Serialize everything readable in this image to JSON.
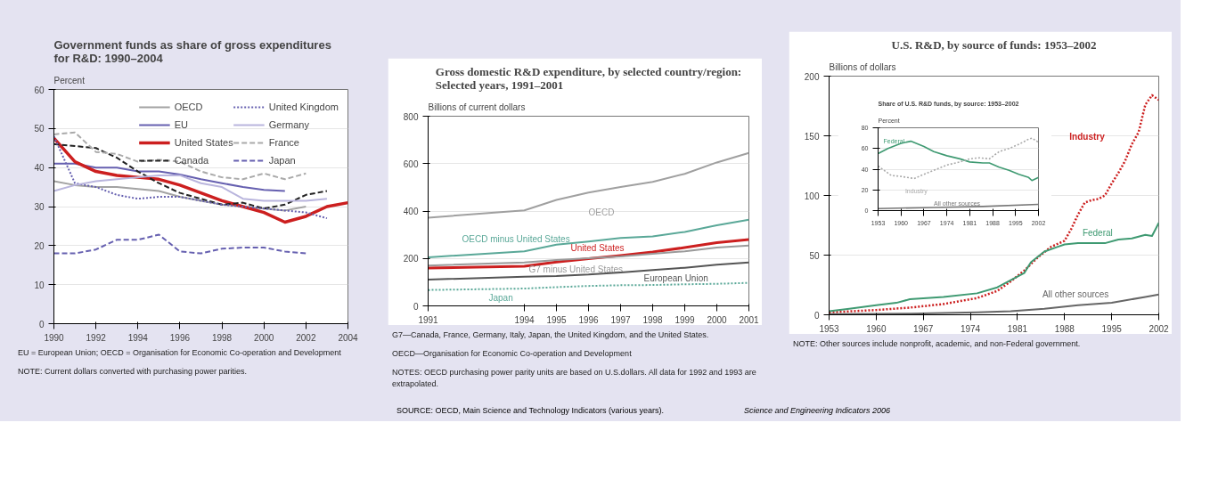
{
  "chart_data": [
    {
      "type": "line",
      "title": "Government funds as share of gross expenditures for R&D: 1990–2004",
      "ylabel": "Percent",
      "x": [
        1990,
        1991,
        1992,
        1993,
        1994,
        1995,
        1996,
        1997,
        1998,
        1999,
        2000,
        2001,
        2002,
        2003,
        2004
      ],
      "xlim": [
        1990,
        2004
      ],
      "xticks": [
        1990,
        1992,
        1994,
        1996,
        1998,
        2000,
        2002,
        2004
      ],
      "ylim": [
        0,
        60
      ],
      "yticks": [
        0,
        10,
        20,
        30,
        40,
        50,
        60
      ],
      "grid": "y",
      "legend": "top right",
      "series": [
        {
          "name": "OECD",
          "color": "#a3a3a3",
          "line_style": "solid",
          "values": [
            36.5,
            35.5,
            35,
            35,
            34.5,
            34,
            32.5,
            31.5,
            30.5,
            30,
            29.5,
            29,
            30,
            null,
            null
          ]
        },
        {
          "name": "EU",
          "color": "#6660b0",
          "line_style": "solid",
          "values": [
            41,
            41,
            40,
            40,
            39,
            39,
            38.2,
            37,
            36,
            35,
            34.3,
            34,
            null,
            null,
            null
          ]
        },
        {
          "name": "United States",
          "color": "#cc1f1f",
          "line_style": "solid",
          "values": [
            47.5,
            41.5,
            39,
            38,
            37.5,
            37,
            35.5,
            33.5,
            31.5,
            30,
            28.5,
            26,
            27.5,
            30,
            31
          ]
        },
        {
          "name": "Canada",
          "color": "#222222",
          "line_style": "dashed",
          "values": [
            46,
            45.5,
            45,
            42.5,
            39,
            36,
            33.5,
            32,
            30.5,
            31,
            29.5,
            30.5,
            33,
            34,
            null
          ]
        },
        {
          "name": "United Kingdom",
          "color": "#6660b0",
          "line_style": "dotted",
          "values": [
            48,
            36,
            35,
            33,
            32,
            32.5,
            32.5,
            31.5,
            30.5,
            30,
            29.5,
            29,
            28.5,
            27,
            null
          ]
        },
        {
          "name": "Germany",
          "color": "#b9b5dd",
          "line_style": "solid",
          "values": [
            34,
            35.5,
            36.5,
            37,
            37.5,
            38,
            38,
            36,
            35,
            32,
            31.5,
            31.5,
            31.5,
            32,
            null
          ]
        },
        {
          "name": "France",
          "color": "#aaaaaa",
          "line_style": "dashed",
          "values": [
            48.5,
            49,
            44,
            43.5,
            41.5,
            42,
            41.5,
            39,
            37.5,
            37,
            38.5,
            37,
            38.5,
            null,
            null
          ]
        },
        {
          "name": "Japan",
          "color": "#6660b0",
          "line_style": "dashed",
          "values": [
            18,
            18,
            19,
            21.5,
            21.5,
            22.8,
            18.5,
            18,
            19.2,
            19.5,
            19.5,
            18.5,
            18,
            null,
            null
          ]
        }
      ],
      "annotations": [
        "EU = European Union; OECD = Organisation for Economic Co-operation and Development",
        "NOTE: Current dollars converted with purchasing power parities."
      ]
    },
    {
      "type": "line",
      "title": "Gross domestic R&D expenditure, by selected country/region: Selected years, 1991–2001",
      "ylabel": "Billions of current dollars",
      "x": [
        1991,
        1994,
        1995,
        1996,
        1997,
        1998,
        1999,
        2000,
        2001
      ],
      "xlim": [
        1991,
        2001
      ],
      "xticks": [
        1991,
        1994,
        1995,
        1996,
        1997,
        1998,
        1999,
        2000,
        2001
      ],
      "ylim": [
        0,
        800
      ],
      "yticks": [
        0,
        200,
        400,
        600,
        800
      ],
      "grid": "y",
      "series": [
        {
          "name": "OECD",
          "color": "#a0a0a0",
          "line_style": "solid",
          "values": [
            372,
            403,
            447,
            478,
            501,
            523,
            557,
            605,
            645
          ]
        },
        {
          "name": "OECD minus United States",
          "color": "#5aa898",
          "line_style": "solid",
          "values": [
            205,
            230,
            258,
            271,
            286,
            293,
            312,
            340,
            363
          ]
        },
        {
          "name": "United States",
          "color": "#cc1f1f",
          "line_style": "solid",
          "values": [
            160,
            167,
            185,
            199,
            212,
            227,
            246,
            267,
            280
          ]
        },
        {
          "name": "G7 minus United States",
          "color": "#9a9a9a",
          "line_style": "solid",
          "values": [
            170,
            183,
            193,
            201,
            208,
            220,
            230,
            246,
            254
          ]
        },
        {
          "name": "European Union",
          "color": "#555555",
          "line_style": "solid",
          "values": [
            111,
            123,
            126,
            132,
            141,
            151,
            161,
            174,
            183
          ]
        },
        {
          "name": "Japan",
          "color": "#5aa898",
          "line_style": "dotted",
          "values": [
            67,
            73,
            79,
            84,
            87,
            88,
            91,
            93,
            97
          ]
        }
      ],
      "annotations": [
        "G7—Canada, France, Germany, Italy, Japan, the United Kingdom, and the United States.",
        "OECD—Organisation for Economic Co-operation and Development",
        "NOTES: OECD purchasing power parity units are based on U.S.dollars. All data for 1992 and 1993 are extrapolated.",
        "SOURCE: OECD, Main Science and Technology Indicators (various years).",
        "Science and Engineering Indicators 2006"
      ]
    },
    {
      "type": "line",
      "title": "U.S. R&D, by source of funds: 1953–2002",
      "ylabel": "Billions of dollars",
      "xlim": [
        1953,
        2002
      ],
      "xticks": [
        1953,
        1960,
        1967,
        1974,
        1981,
        1988,
        1995,
        2002
      ],
      "ylim": [
        0,
        200
      ],
      "yticks": [
        0,
        50,
        100,
        150,
        200
      ],
      "grid": "y",
      "series": [
        {
          "name": "Industry",
          "color": "#cc1f1f",
          "line_style": "dotted",
          "x": [
            1953,
            1960,
            1965,
            1970,
            1975,
            1978,
            1980,
            1982,
            1984,
            1986,
            1988,
            1989,
            1990,
            1991,
            1992,
            1993,
            1994,
            1995,
            1996,
            1997,
            1998,
            1999,
            2000,
            2001,
            2002
          ],
          "values": [
            2,
            4,
            6,
            9,
            14,
            20,
            28,
            37,
            48,
            57,
            62,
            72,
            84,
            94,
            96,
            97,
            100,
            110,
            119,
            129,
            143,
            153,
            176,
            184,
            180
          ]
        },
        {
          "name": "Federal",
          "color": "#3f9a72",
          "line_style": "solid",
          "x": [
            1953,
            1956,
            1960,
            1963,
            1965,
            1970,
            1975,
            1978,
            1980,
            1982,
            1983,
            1985,
            1987,
            1988,
            1990,
            1992,
            1994,
            1996,
            1998,
            2000,
            2001,
            2002
          ],
          "values": [
            3,
            5,
            8,
            10,
            13,
            15,
            18,
            23,
            29,
            35,
            44,
            53,
            57,
            59,
            60,
            60,
            60,
            63,
            64,
            67,
            66,
            77
          ]
        },
        {
          "name": "All other sources",
          "color": "#666666",
          "line_style": "solid",
          "x": [
            1953,
            1965,
            1975,
            1980,
            1985,
            1990,
            1995,
            2000,
            2002
          ],
          "values": [
            0.5,
            1,
            2,
            3,
            5,
            8,
            10,
            15,
            17
          ]
        }
      ],
      "annotations": [
        "NOTE: Other sources include nonprofit, academic, and non-Federal government."
      ]
    },
    {
      "type": "line",
      "title": "Share of U.S. R&D funds, by source: 1953–2002",
      "ylabel": "Percent",
      "xlim": [
        1953,
        2002
      ],
      "xticks": [
        1953,
        1960,
        1967,
        1974,
        1981,
        1988,
        1995,
        2002
      ],
      "ylim": [
        0,
        80
      ],
      "yticks": [
        0,
        20,
        40,
        60,
        80
      ],
      "grid": "y",
      "series": [
        {
          "name": "Federal",
          "color": "#3f9a72",
          "line_style": "solid",
          "x": [
            1953,
            1956,
            1960,
            1963,
            1967,
            1970,
            1974,
            1978,
            1981,
            1985,
            1987,
            1990,
            1993,
            1996,
            1999,
            2000,
            2002
          ],
          "values": [
            55,
            60,
            65,
            67,
            62,
            57,
            53,
            50,
            47,
            46,
            46,
            42,
            39,
            35,
            32,
            29,
            32
          ]
        },
        {
          "name": "Industry",
          "color": "#aaaaaa",
          "line_style": "dotted",
          "x": [
            1953,
            1957,
            1960,
            1964,
            1967,
            1970,
            1974,
            1978,
            1981,
            1984,
            1987,
            1990,
            1993,
            1996,
            1999,
            2000,
            2002
          ],
          "values": [
            43,
            34,
            33,
            31,
            35,
            39,
            44,
            47,
            50,
            51,
            50,
            57,
            60,
            64,
            69,
            70,
            66
          ]
        },
        {
          "name": "All other sources",
          "color": "#777777",
          "line_style": "solid",
          "x": [
            1953,
            1970,
            1985,
            2002
          ],
          "values": [
            2,
            3,
            4,
            6
          ]
        }
      ]
    }
  ]
}
